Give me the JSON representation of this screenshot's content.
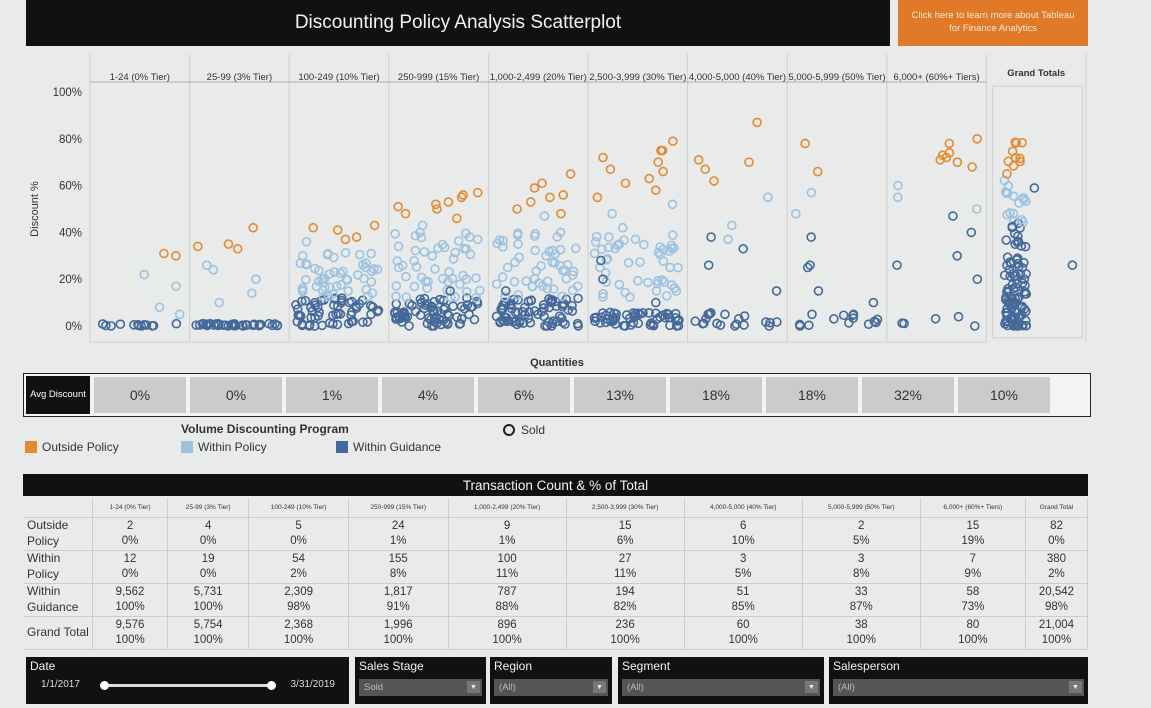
{
  "header": {
    "title": "Discounting Policy Analysis Scatterplot",
    "promo_button": "Click here to learn more about Tableau for Finance Analytics"
  },
  "colors": {
    "outside_policy": "#e48a30",
    "within_policy": "#9cc2e0",
    "within_guidance": "#44699a",
    "promo": "#e07a28"
  },
  "chart_data": {
    "type": "scatter",
    "title": "",
    "xlabel": "Quantities",
    "ylabel": "Discount %",
    "ylim": [
      0,
      100
    ],
    "yticks": [
      "0%",
      "20%",
      "40%",
      "60%",
      "80%",
      "100%"
    ],
    "panels": [
      "1-24 (0% Tier)",
      "25-99 (3% Tier)",
      "100-249 (10% Tier)",
      "250-999 (15% Tier)",
      "1,000-2,499 (20% Tier)",
      "2,500-3,999 (30% Tier)",
      "4,000-5,000 (40% Tier)",
      "5,000-5,999 (50% Tier)",
      "6,000+ (60%+ Tiers)",
      "Grand Totals"
    ],
    "series": [
      {
        "name": "Outside Policy",
        "points": [
          [
            0,
            31
          ],
          [
            0,
            30
          ],
          [
            1,
            42
          ],
          [
            1,
            34
          ],
          [
            1,
            33
          ],
          [
            1,
            35
          ],
          [
            2,
            37
          ],
          [
            2,
            42
          ],
          [
            2,
            38
          ],
          [
            2,
            43
          ],
          [
            2,
            41
          ],
          [
            3,
            48
          ],
          [
            3,
            52
          ],
          [
            3,
            55
          ],
          [
            3,
            57
          ],
          [
            3,
            53
          ],
          [
            3,
            50
          ],
          [
            3,
            46
          ],
          [
            3,
            56
          ],
          [
            3,
            51
          ],
          [
            4,
            48
          ],
          [
            4,
            53
          ],
          [
            4,
            56
          ],
          [
            4,
            61
          ],
          [
            4,
            65
          ],
          [
            4,
            50
          ],
          [
            4,
            59
          ],
          [
            4,
            55
          ],
          [
            5,
            75
          ],
          [
            5,
            79
          ],
          [
            5,
            72
          ],
          [
            5,
            66
          ],
          [
            5,
            61
          ],
          [
            5,
            63
          ],
          [
            5,
            70
          ],
          [
            5,
            67
          ],
          [
            5,
            58
          ],
          [
            5,
            55
          ],
          [
            5,
            75
          ],
          [
            6,
            87
          ],
          [
            6,
            71
          ],
          [
            6,
            70
          ],
          [
            6,
            67
          ],
          [
            6,
            62
          ],
          [
            7,
            78
          ],
          [
            7,
            66
          ],
          [
            8,
            80
          ],
          [
            8,
            78
          ],
          [
            8,
            72
          ],
          [
            8,
            70
          ],
          [
            8,
            74
          ],
          [
            8,
            73
          ],
          [
            8,
            68
          ],
          [
            8,
            71
          ]
        ]
      },
      {
        "name": "Within Policy",
        "points": [
          [
            0,
            22
          ],
          [
            0,
            17
          ],
          [
            0,
            8
          ],
          [
            0,
            5
          ],
          [
            1,
            24
          ],
          [
            1,
            14
          ],
          [
            1,
            10
          ],
          [
            1,
            26
          ],
          [
            1,
            20
          ],
          [
            2,
            25
          ],
          [
            2,
            36
          ],
          [
            2,
            20
          ],
          [
            2,
            30
          ],
          [
            2,
            15
          ],
          [
            3,
            38
          ],
          [
            3,
            30
          ],
          [
            3,
            25
          ],
          [
            3,
            20
          ],
          [
            3,
            43
          ],
          [
            4,
            40
          ],
          [
            4,
            30
          ],
          [
            4,
            25
          ],
          [
            4,
            35
          ],
          [
            4,
            47
          ],
          [
            5,
            42
          ],
          [
            5,
            52
          ],
          [
            5,
            48
          ],
          [
            5,
            35
          ],
          [
            5,
            38
          ],
          [
            6,
            55
          ],
          [
            6,
            43
          ],
          [
            6,
            37
          ],
          [
            7,
            48
          ],
          [
            7,
            57
          ],
          [
            8,
            60
          ],
          [
            8,
            55
          ],
          [
            8,
            50
          ]
        ]
      },
      {
        "name": "Within Guidance",
        "points": [
          [
            0,
            0
          ],
          [
            1,
            0
          ],
          [
            2,
            0
          ],
          [
            2,
            8
          ],
          [
            3,
            0
          ],
          [
            3,
            10
          ],
          [
            3,
            15
          ],
          [
            4,
            0
          ],
          [
            4,
            10
          ],
          [
            4,
            15
          ],
          [
            5,
            0
          ],
          [
            5,
            10
          ],
          [
            5,
            20
          ],
          [
            5,
            28
          ],
          [
            6,
            0
          ],
          [
            6,
            15
          ],
          [
            6,
            26
          ],
          [
            6,
            33
          ],
          [
            6,
            38
          ],
          [
            7,
            0
          ],
          [
            7,
            5
          ],
          [
            7,
            25
          ],
          [
            7,
            26
          ],
          [
            7,
            38
          ],
          [
            7,
            15
          ],
          [
            7,
            10
          ],
          [
            8,
            0
          ],
          [
            8,
            20
          ],
          [
            8,
            30
          ],
          [
            8,
            40
          ],
          [
            8,
            47
          ],
          [
            8,
            26
          ]
        ]
      }
    ],
    "grand_total_outliers": [
      59,
      26
    ]
  },
  "avg_discount": {
    "label": "Avg Discount",
    "values": [
      "0%",
      "0%",
      "1%",
      "4%",
      "6%",
      "13%",
      "18%",
      "18%",
      "32%",
      "10%"
    ]
  },
  "legend": {
    "title": "Volume Discounting Program",
    "outside": "Outside Policy",
    "within": "Within Policy",
    "guidance": "Within Guidance",
    "sold": "Sold"
  },
  "transactions": {
    "title": "Transaction Count & % of Total",
    "columns": [
      "1-24 (0% Tier)",
      "25-99 (3% Tier)",
      "100-249 (10% Tier)",
      "250-999 (15% Tier)",
      "1,000-2,499 (20% Tier)",
      "2,500-3,999 (30% Tier)",
      "4,000-5,000 (40% Tier)",
      "5,000-5,999 (50% Tier)",
      "6,000+ (60%+ Tiers)",
      "Grand Total"
    ],
    "rows": [
      {
        "label": "Outside Policy",
        "counts": [
          "2",
          "4",
          "5",
          "24",
          "9",
          "15",
          "6",
          "2",
          "15",
          "82"
        ],
        "pcts": [
          "0%",
          "0%",
          "0%",
          "1%",
          "1%",
          "6%",
          "10%",
          "5%",
          "19%",
          "0%"
        ]
      },
      {
        "label": "Within Policy",
        "counts": [
          "12",
          "19",
          "54",
          "155",
          "100",
          "27",
          "3",
          "3",
          "7",
          "380"
        ],
        "pcts": [
          "0%",
          "0%",
          "2%",
          "8%",
          "11%",
          "11%",
          "5%",
          "8%",
          "9%",
          "2%"
        ]
      },
      {
        "label": "Within Guidance",
        "counts": [
          "9,562",
          "5,731",
          "2,309",
          "1,817",
          "787",
          "194",
          "51",
          "33",
          "58",
          "20,542"
        ],
        "pcts": [
          "100%",
          "100%",
          "98%",
          "91%",
          "88%",
          "82%",
          "85%",
          "87%",
          "73%",
          "98%"
        ]
      },
      {
        "label": "Grand Total",
        "counts": [
          "9,576",
          "5,754",
          "2,368",
          "1,996",
          "896",
          "236",
          "60",
          "38",
          "80",
          "21,004"
        ],
        "pcts": [
          "100%",
          "100%",
          "100%",
          "100%",
          "100%",
          "100%",
          "100%",
          "100%",
          "100%",
          "100%"
        ]
      }
    ]
  },
  "filters": {
    "date": {
      "label": "Date",
      "start": "1/1/2017",
      "end": "3/31/2019"
    },
    "sales_stage": {
      "label": "Sales Stage",
      "value": "Sold"
    },
    "region": {
      "label": "Region",
      "value": "(All)"
    },
    "segment": {
      "label": "Segment",
      "value": "(All)"
    },
    "salesperson": {
      "label": "Salesperson",
      "value": "(All)"
    }
  }
}
